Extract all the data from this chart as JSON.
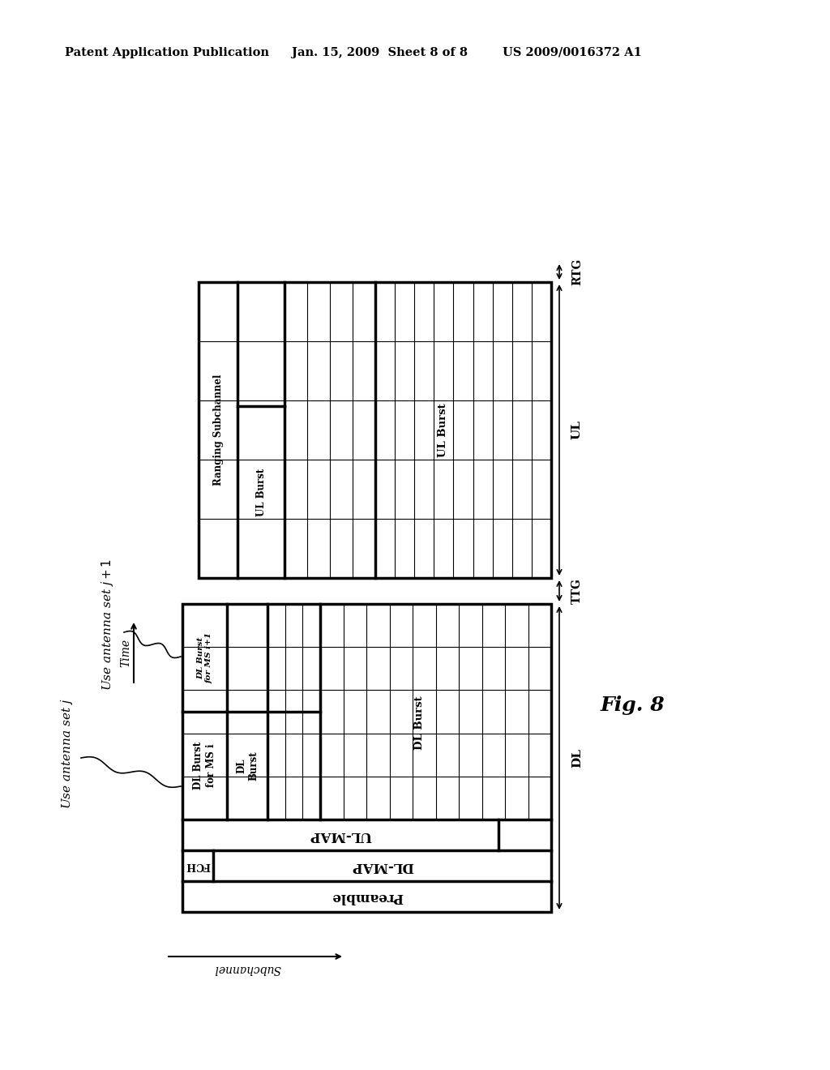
{
  "header_left": "Patent Application Publication",
  "header_mid": "Jan. 15, 2009  Sheet 8 of 8",
  "header_right": "US 2009/0016372 A1",
  "fig_label": "Fig. 8",
  "background": "#ffffff"
}
